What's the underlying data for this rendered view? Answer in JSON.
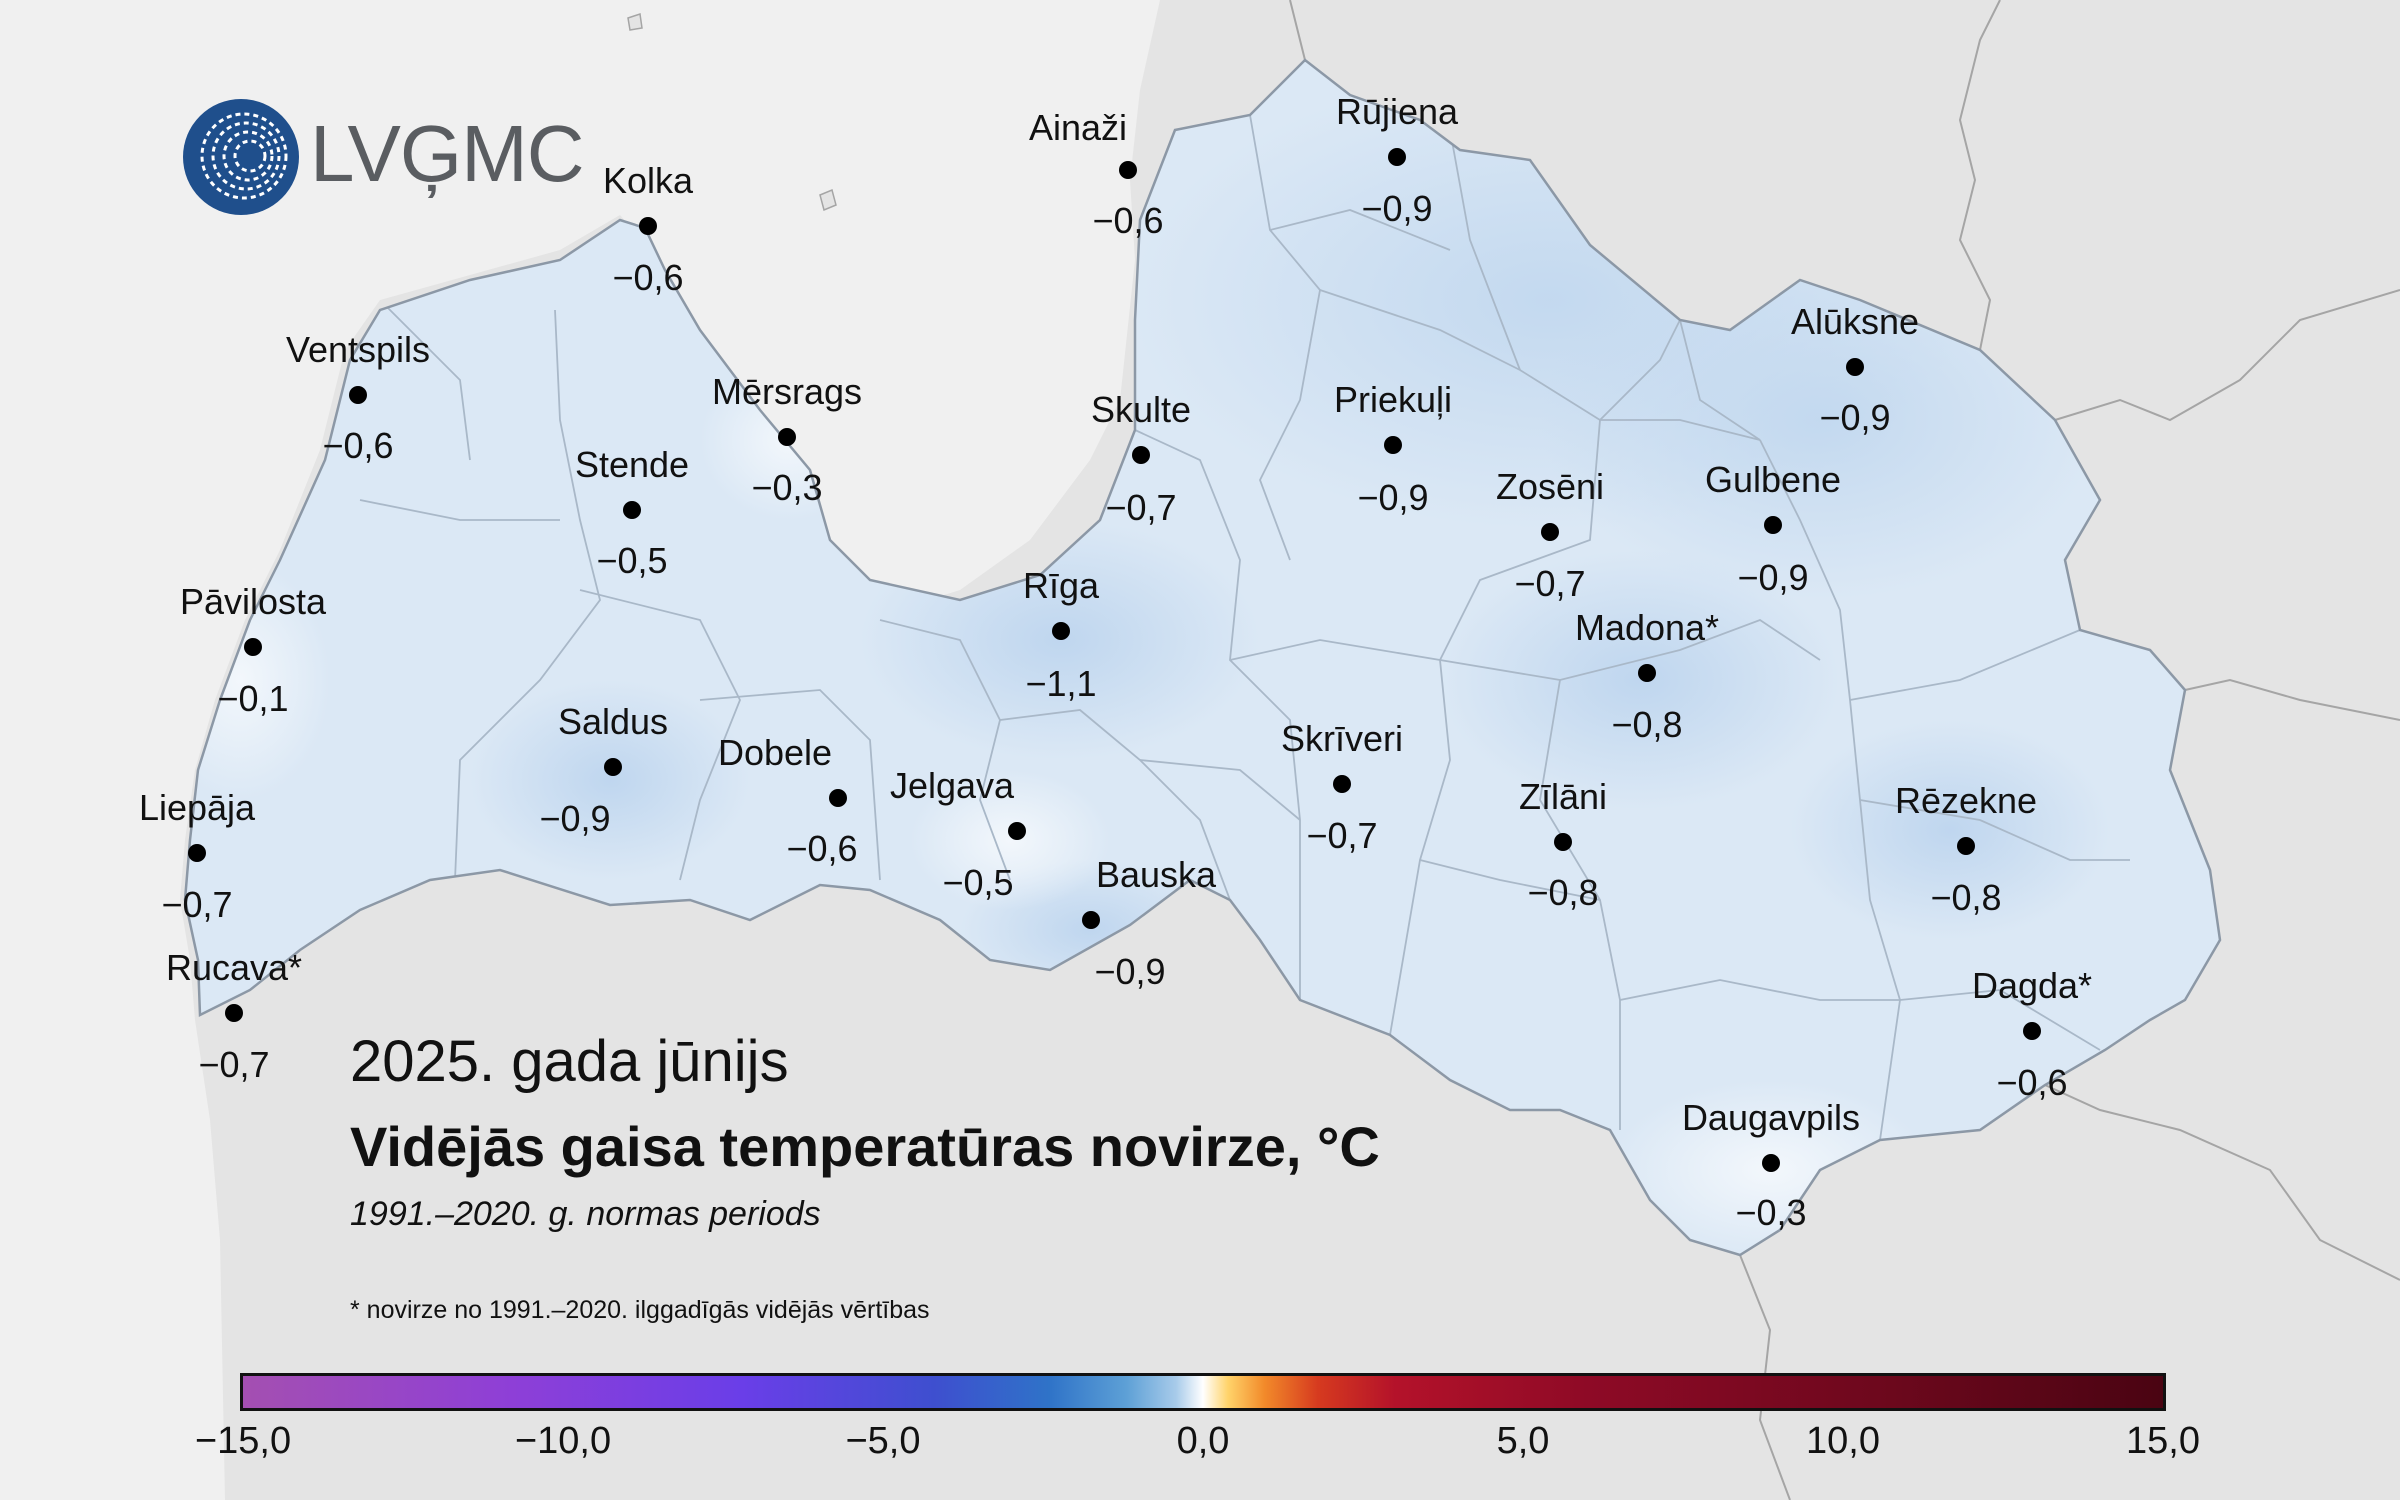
{
  "brand": {
    "name": "LVĢMC",
    "color": "#1f4f8c"
  },
  "colors": {
    "sea": "#f0f0f0",
    "land_outside": "#e4e4e4",
    "latvia_fill": "#dbe8f5",
    "latvia_dark": "#c7dcf0",
    "border": "#9aa3ad"
  },
  "title": {
    "subtitle": "2025. gada jūnijs",
    "main": "Vidējās gaisa temperatūras novirze, °C",
    "period": "1991.–2020. g. normas periods",
    "footnote": "* novirze no 1991.–2020. ilggadīgās vidējās vērtības"
  },
  "stations": [
    {
      "name": "Ainaži",
      "value": "−0,6",
      "anomaly": -0.6
    },
    {
      "name": "Rūjiena",
      "value": "−0,9",
      "anomaly": -0.9
    },
    {
      "name": "Kolka",
      "value": "−0,6",
      "anomaly": -0.6
    },
    {
      "name": "Ventspils",
      "value": "−0,6",
      "anomaly": -0.6
    },
    {
      "name": "Mērsrags",
      "value": "−0,3",
      "anomaly": -0.3
    },
    {
      "name": "Skulte",
      "value": "−0,7",
      "anomaly": -0.7
    },
    {
      "name": "Priekuļi",
      "value": "−0,9",
      "anomaly": -0.9
    },
    {
      "name": "Alūksne",
      "value": "−0,9",
      "anomaly": -0.9
    },
    {
      "name": "Stende",
      "value": "−0,5",
      "anomaly": -0.5
    },
    {
      "name": "Zosēni",
      "value": "−0,7",
      "anomaly": -0.7
    },
    {
      "name": "Gulbene",
      "value": "−0,9",
      "anomaly": -0.9
    },
    {
      "name": "Pāvilosta",
      "value": "−0,1",
      "anomaly": -0.1
    },
    {
      "name": "Rīga",
      "value": "−1,1",
      "anomaly": -1.1
    },
    {
      "name": "Madona*",
      "value": "−0,8",
      "anomaly": -0.8
    },
    {
      "name": "Saldus",
      "value": "−0,9",
      "anomaly": -0.9
    },
    {
      "name": "Dobele",
      "value": "−0,6",
      "anomaly": -0.6
    },
    {
      "name": "Jelgava",
      "value": "−0,5",
      "anomaly": -0.5
    },
    {
      "name": "Skrīveri",
      "value": "−0,7",
      "anomaly": -0.7
    },
    {
      "name": "Zīlāni",
      "value": "−0,8",
      "anomaly": -0.8
    },
    {
      "name": "Rēzekne",
      "value": "−0,8",
      "anomaly": -0.8
    },
    {
      "name": "Liepāja",
      "value": "−0,7",
      "anomaly": -0.7
    },
    {
      "name": "Bauska",
      "value": "−0,9",
      "anomaly": -0.9
    },
    {
      "name": "Rucava*",
      "value": "−0,7",
      "anomaly": -0.7
    },
    {
      "name": "Dagda*",
      "value": "−0,6",
      "anomaly": -0.6
    },
    {
      "name": "Daugavpils",
      "value": "−0,3",
      "anomaly": -0.3
    }
  ],
  "scale": {
    "min": -15,
    "max": 15,
    "ticks": [
      "−15,0",
      "−10,0",
      "−5,0",
      "0,0",
      "5,0",
      "10,0",
      "15,0"
    ]
  }
}
